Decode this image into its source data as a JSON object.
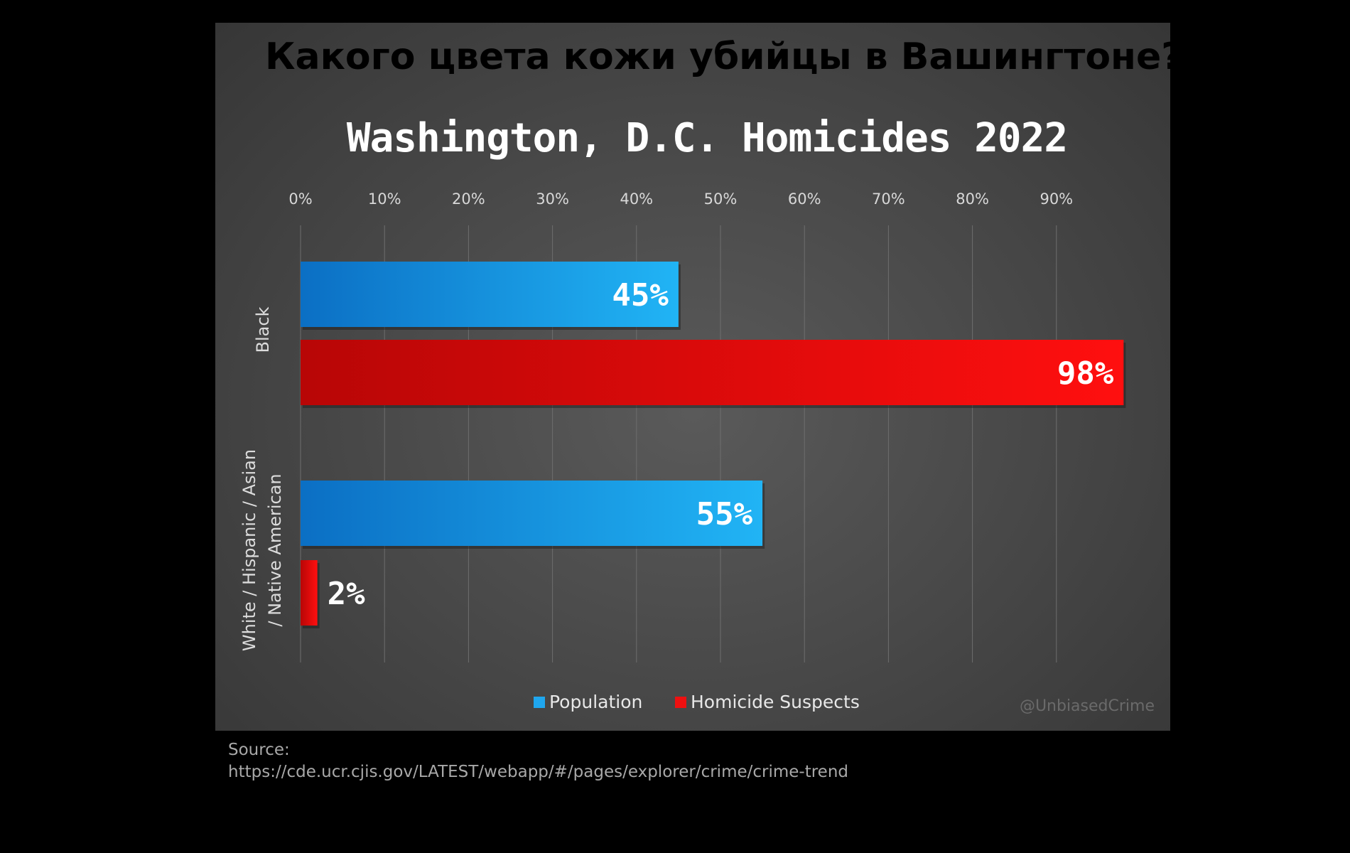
{
  "headline": "Какого цвета кожи убийцы в Вашингтоне?",
  "watermark": "@UnbiasedCrime",
  "source": {
    "label": "Source:",
    "url": "https://cde.ucr.cjis.gov/LATEST/webapp/#/pages/explorer/crime/crime-trend"
  },
  "colors": {
    "population": "#1fa6ee",
    "homicide": "#ee1010"
  },
  "chart_data": {
    "type": "bar",
    "orientation": "horizontal",
    "title": "Washington, D.C. Homicides 2022",
    "categories": [
      "Black",
      "White / Hispanic / Asian / Native American"
    ],
    "category_lines": [
      [
        "Black"
      ],
      [
        "White / Hispanic / Asian",
        "/ Native American"
      ]
    ],
    "series": [
      {
        "name": "Population",
        "values": [
          45,
          55
        ],
        "labels": [
          "45%",
          "55%"
        ]
      },
      {
        "name": "Homicide Suspects",
        "values": [
          98,
          2
        ],
        "labels": [
          "98%",
          "2%"
        ]
      }
    ],
    "xlim": [
      0,
      100
    ],
    "xticks": [
      0,
      10,
      20,
      30,
      40,
      50,
      60,
      70,
      80,
      90
    ],
    "xtick_labels": [
      "0%",
      "10%",
      "20%",
      "30%",
      "40%",
      "50%",
      "60%",
      "70%",
      "80%",
      "90%"
    ],
    "axis_position": "top",
    "grid": true,
    "legend": "bottom-center"
  }
}
